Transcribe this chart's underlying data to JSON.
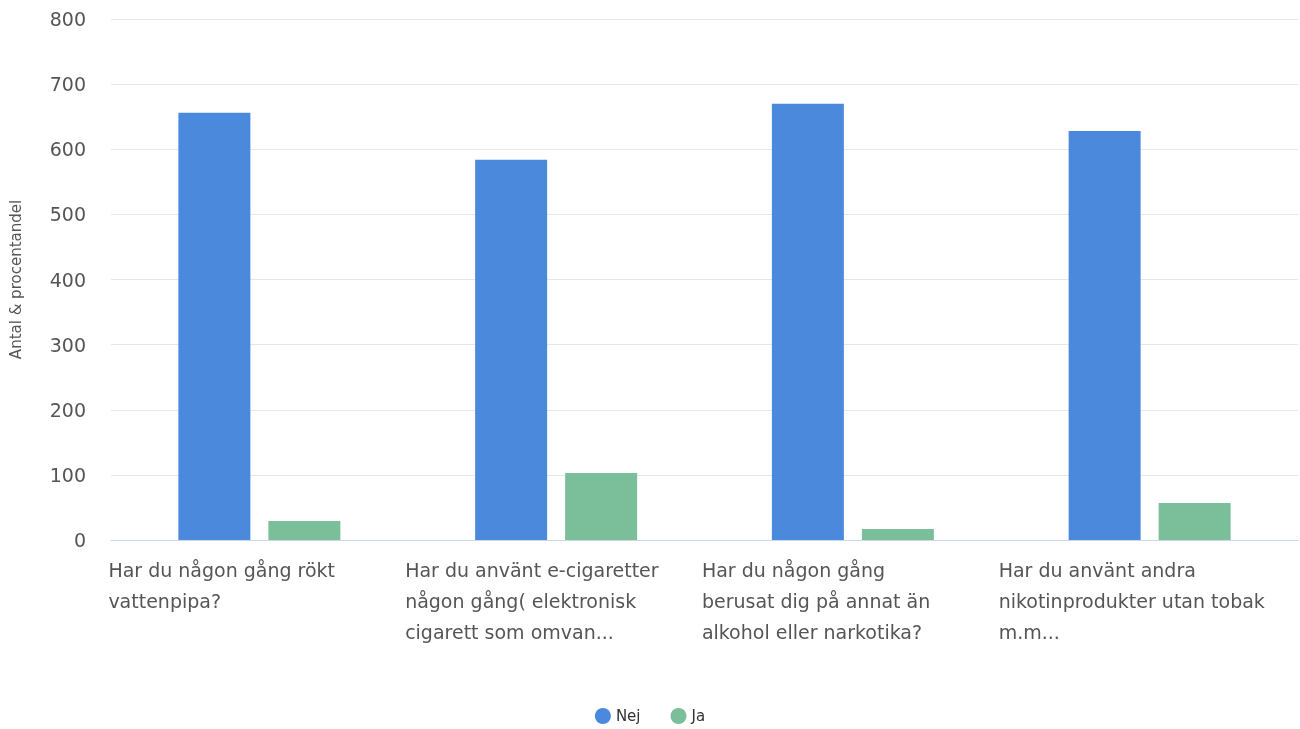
{
  "chart_data": {
    "type": "bar",
    "ylabel": "Antal & procentandel",
    "categories": [
      "Har du någon gång rökt vattenpipa?",
      "Har du använt e-cigaretter någon gång( elektronisk cigarett som omvan...",
      "Har du någon gång berusat dig på annat än alkohol eller narkotika?",
      "Har du använt andra nikotinprodukter utan tobak m.m..."
    ],
    "series": [
      {
        "name": "Nej",
        "color": "#4a89dc",
        "values": [
          656,
          584,
          670,
          628
        ]
      },
      {
        "name": "Ja",
        "color": "#7bbf9a",
        "values": [
          29,
          103,
          17,
          57
        ]
      }
    ],
    "ylim": [
      0,
      800
    ],
    "yticks": [
      0,
      100,
      200,
      300,
      400,
      500,
      600,
      700,
      800
    ],
    "grid": "y",
    "legend": "bottom"
  }
}
